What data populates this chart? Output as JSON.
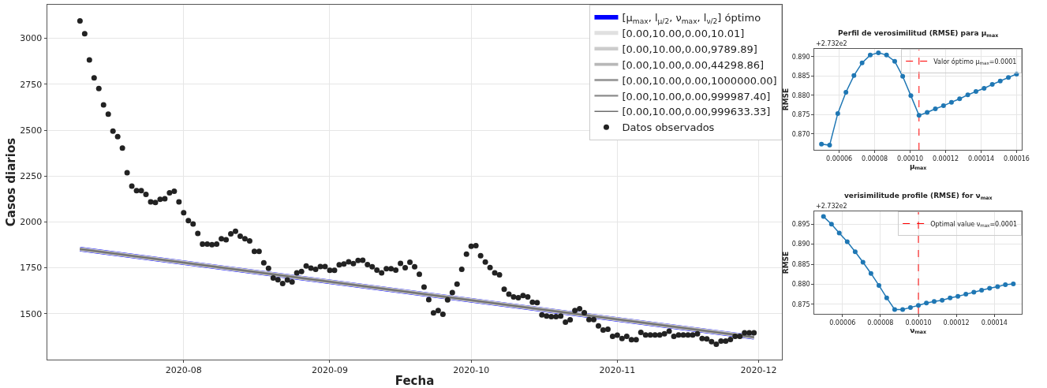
{
  "chart_data": [
    {
      "type": "line",
      "xlabel": "Fecha",
      "ylabel": "Casos diarios",
      "xlim": [
        "2020-07-03",
        "2020-12-06"
      ],
      "ylim": [
        1250,
        3183
      ],
      "xticks": [
        "2020-08",
        "2020-09",
        "2020-10",
        "2020-11",
        "2020-12"
      ],
      "yticks": [
        1500,
        1750,
        2000,
        2250,
        2500,
        2750,
        3000
      ],
      "grid": true,
      "legend": "top right",
      "series": [
        {
          "name": "[μ$_{max}$, l$_{μ/2}$, ν$_{max}$, l$_{ν/2}$] óptimo",
          "type": "line",
          "color": "#0000ff",
          "x": [
            "2020-07-10",
            "2020-11-30"
          ],
          "values": [
            1852,
            1372
          ]
        },
        {
          "name": "[0.00,10.00,0.00,10.01]",
          "type": "line",
          "color": "#e0e0e0",
          "x": [
            "2020-07-10",
            "2020-11-30"
          ],
          "values": [
            1852,
            1372
          ]
        },
        {
          "name": "[0.00,10.00,0.00,9789.89]",
          "type": "line",
          "color": "#cccccc",
          "x": [
            "2020-07-10",
            "2020-11-30"
          ],
          "values": [
            1852,
            1372
          ]
        },
        {
          "name": "[0.00,10.00,0.00,44298.86]",
          "type": "line",
          "color": "#b8b8b8",
          "x": [
            "2020-07-10",
            "2020-11-30"
          ],
          "values": [
            1852,
            1372
          ]
        },
        {
          "name": "[0.00,10.00,0.00,1000000.00]",
          "type": "line",
          "color": "#a0a0a0",
          "x": [
            "2020-07-10",
            "2020-11-30"
          ],
          "values": [
            1852,
            1372
          ]
        },
        {
          "name": "[0.00,10.00,0.00,999987.40]",
          "type": "line",
          "color": "#8c8c8c",
          "x": [
            "2020-07-10",
            "2020-11-30"
          ],
          "values": [
            1852,
            1372
          ]
        },
        {
          "name": "[0.00,10.00,0.00,999633.33]",
          "type": "line",
          "color": "#6e6e6e",
          "x": [
            "2020-07-10",
            "2020-11-30"
          ],
          "values": [
            1852,
            1372
          ]
        },
        {
          "name": "Datos observados",
          "type": "scatter",
          "color": "#222222",
          "x": [
            "2020-07-10",
            "2020-07-11",
            "2020-07-12",
            "2020-07-13",
            "2020-07-14",
            "2020-07-15",
            "2020-07-16",
            "2020-07-17",
            "2020-07-18",
            "2020-07-19",
            "2020-07-20",
            "2020-07-21",
            "2020-07-22",
            "2020-07-23",
            "2020-07-24",
            "2020-07-25",
            "2020-07-26",
            "2020-07-27",
            "2020-07-28",
            "2020-07-29",
            "2020-07-30",
            "2020-07-31",
            "2020-08-01",
            "2020-08-02",
            "2020-08-03",
            "2020-08-04",
            "2020-08-05",
            "2020-08-06",
            "2020-08-07",
            "2020-08-08",
            "2020-08-09",
            "2020-08-10",
            "2020-08-11",
            "2020-08-12",
            "2020-08-13",
            "2020-08-14",
            "2020-08-15",
            "2020-08-16",
            "2020-08-17",
            "2020-08-18",
            "2020-08-19",
            "2020-08-20",
            "2020-08-21",
            "2020-08-22",
            "2020-08-23",
            "2020-08-24",
            "2020-08-25",
            "2020-08-26",
            "2020-08-27",
            "2020-08-28",
            "2020-08-29",
            "2020-08-30",
            "2020-08-31",
            "2020-09-01",
            "2020-09-02",
            "2020-09-03",
            "2020-09-04",
            "2020-09-05",
            "2020-09-06",
            "2020-09-07",
            "2020-09-08",
            "2020-09-09",
            "2020-09-10",
            "2020-09-11",
            "2020-09-12",
            "2020-09-13",
            "2020-09-14",
            "2020-09-15",
            "2020-09-16",
            "2020-09-17",
            "2020-09-18",
            "2020-09-19",
            "2020-09-20",
            "2020-09-21",
            "2020-09-22",
            "2020-09-23",
            "2020-09-24",
            "2020-09-25",
            "2020-09-26",
            "2020-09-27",
            "2020-09-28",
            "2020-09-29",
            "2020-09-30",
            "2020-10-01",
            "2020-10-02",
            "2020-10-03",
            "2020-10-04",
            "2020-10-05",
            "2020-10-06",
            "2020-10-07",
            "2020-10-08",
            "2020-10-09",
            "2020-10-10",
            "2020-10-11",
            "2020-10-12",
            "2020-10-13",
            "2020-10-14",
            "2020-10-15",
            "2020-10-16",
            "2020-10-17",
            "2020-10-18",
            "2020-10-19",
            "2020-10-20",
            "2020-10-21",
            "2020-10-22",
            "2020-10-23",
            "2020-10-24",
            "2020-10-25",
            "2020-10-26",
            "2020-10-27",
            "2020-10-28",
            "2020-10-29",
            "2020-10-30",
            "2020-10-31",
            "2020-11-01",
            "2020-11-02",
            "2020-11-03",
            "2020-11-04",
            "2020-11-05",
            "2020-11-06",
            "2020-11-07",
            "2020-11-08",
            "2020-11-09",
            "2020-11-10",
            "2020-11-11",
            "2020-11-12",
            "2020-11-13",
            "2020-11-14",
            "2020-11-15",
            "2020-11-16",
            "2020-11-17",
            "2020-11-18",
            "2020-11-19",
            "2020-11-20",
            "2020-11-21",
            "2020-11-22",
            "2020-11-23",
            "2020-11-24",
            "2020-11-25",
            "2020-11-26",
            "2020-11-27",
            "2020-11-28",
            "2020-11-29",
            "2020-11-30"
          ],
          "values": [
            3095,
            3025,
            2882,
            2785,
            2727,
            2638,
            2587,
            2495,
            2465,
            2402,
            2268,
            2195,
            2170,
            2170,
            2150,
            2109,
            2106,
            2123,
            2126,
            2159,
            2167,
            2109,
            2050,
            2007,
            1989,
            1937,
            1879,
            1879,
            1876,
            1879,
            1908,
            1903,
            1935,
            1949,
            1922,
            1908,
            1897,
            1840,
            1840,
            1777,
            1747,
            1695,
            1685,
            1664,
            1684,
            1673,
            1722,
            1730,
            1760,
            1748,
            1742,
            1757,
            1757,
            1736,
            1736,
            1767,
            1771,
            1783,
            1773,
            1790,
            1791,
            1768,
            1756,
            1738,
            1722,
            1745,
            1745,
            1738,
            1774,
            1750,
            1780,
            1756,
            1715,
            1645,
            1576,
            1504,
            1517,
            1497,
            1575,
            1615,
            1661,
            1742,
            1825,
            1868,
            1871,
            1816,
            1782,
            1751,
            1723,
            1712,
            1633,
            1607,
            1592,
            1587,
            1599,
            1592,
            1563,
            1560,
            1494,
            1487,
            1484,
            1484,
            1487,
            1454,
            1467,
            1517,
            1527,
            1506,
            1468,
            1468,
            1434,
            1411,
            1415,
            1377,
            1383,
            1365,
            1377,
            1358,
            1358,
            1398,
            1384,
            1384,
            1384,
            1384,
            1391,
            1405,
            1377,
            1384,
            1384,
            1384,
            1384,
            1391,
            1365,
            1363,
            1348,
            1334,
            1351,
            1351,
            1360,
            1377,
            1377,
            1396,
            1396,
            1396
          ]
        }
      ]
    },
    {
      "type": "line",
      "title": "Perfil de verosimilitud (RMSE) para μ$_{max}$",
      "xlabel": "μ$_{max}$",
      "ylabel": "RMSE",
      "annotations": [
        "+2.732e2"
      ],
      "marker": "circle",
      "grid": true,
      "legend": "top right",
      "xlim": [
        4.6e-05,
        0.000163
      ],
      "ylim": [
        0.8659,
        0.892
      ],
      "xticks": [
        {
          "value": 6e-05,
          "label": "0.00006"
        },
        {
          "value": 8e-05,
          "label": "0.00008"
        },
        {
          "value": 0.0001,
          "label": "0.00010"
        },
        {
          "value": 0.00012,
          "label": "0.00012"
        },
        {
          "value": 0.00014,
          "label": "0.00014"
        },
        {
          "value": 0.00016,
          "label": "0.00016"
        }
      ],
      "yticks": [
        {
          "value": 0.87,
          "label": "0.870"
        },
        {
          "value": 0.875,
          "label": "0.875"
        },
        {
          "value": 0.88,
          "label": "0.880"
        },
        {
          "value": 0.885,
          "label": "0.885"
        },
        {
          "value": 0.89,
          "label": "0.890"
        }
      ],
      "ref_lines": [
        {
          "axis": "x",
          "value": 0.000105,
          "label": "Valor óptimo μ$_{max}$=0.0001",
          "color": "#ff0000",
          "line_style": "dashed"
        }
      ],
      "series": [
        {
          "color": "#1f77b4",
          "x": [
            5e-05,
            5.46e-05,
            5.92e-05,
            6.38e-05,
            6.83e-05,
            7.29e-05,
            7.75e-05,
            8.21e-05,
            8.67e-05,
            9.13e-05,
            9.58e-05,
            0.0001004,
            0.000105,
            0.0001096,
            0.0001142,
            0.0001188,
            0.0001233,
            0.0001279,
            0.0001325,
            0.0001371,
            0.0001417,
            0.0001463,
            0.0001508,
            0.0001554,
            0.00016
          ],
          "values": [
            0.8674,
            0.8671,
            0.8753,
            0.8808,
            0.8851,
            0.8884,
            0.8904,
            0.891,
            0.8904,
            0.8888,
            0.8849,
            0.8799,
            0.8748,
            0.8756,
            0.8765,
            0.8773,
            0.8782,
            0.8791,
            0.8801,
            0.881,
            0.8818,
            0.8828,
            0.8837,
            0.8846,
            0.8855
          ]
        }
      ]
    },
    {
      "type": "line",
      "title": "verisimilitude profile (RMSE) for ν$_{max}$",
      "xlabel": "ν$_{max}$",
      "ylabel": "RMSE",
      "annotations": [
        "+2.732e2"
      ],
      "marker": "circle",
      "grid": true,
      "legend": "top right",
      "xlim": [
        4.52e-05,
        0.0001545
      ],
      "ylim": [
        0.8726,
        0.8982
      ],
      "xticks": [
        {
          "value": 6e-05,
          "label": "0.00006"
        },
        {
          "value": 8e-05,
          "label": "0.00008"
        },
        {
          "value": 0.0001,
          "label": "0.00010"
        },
        {
          "value": 0.00012,
          "label": "0.00012"
        },
        {
          "value": 0.00014,
          "label": "0.00014"
        }
      ],
      "yticks": [
        {
          "value": 0.875,
          "label": "0.875"
        },
        {
          "value": 0.88,
          "label": "0.880"
        },
        {
          "value": 0.885,
          "label": "0.885"
        },
        {
          "value": 0.89,
          "label": "0.890"
        },
        {
          "value": 0.895,
          "label": "0.895"
        }
      ],
      "ref_lines": [
        {
          "axis": "x",
          "value": 0.0001,
          "label": "Optimal value ν$_{max}$=0.0001",
          "color": "#ff0000",
          "line_style": "dashed"
        }
      ],
      "series": [
        {
          "color": "#1f77b4",
          "x": [
            5e-05,
            5.42e-05,
            5.83e-05,
            6.25e-05,
            6.67e-05,
            7.08e-05,
            7.5e-05,
            7.92e-05,
            8.33e-05,
            8.75e-05,
            9.17e-05,
            9.58e-05,
            0.0001,
            0.0001042,
            0.0001083,
            0.0001125,
            0.0001167,
            0.0001208,
            0.000125,
            0.0001292,
            0.0001333,
            0.0001375,
            0.0001417,
            0.0001458,
            0.00015
          ],
          "values": [
            0.8969,
            0.895,
            0.8928,
            0.8906,
            0.8881,
            0.8855,
            0.8827,
            0.8797,
            0.8766,
            0.8737,
            0.8737,
            0.8742,
            0.8747,
            0.8753,
            0.8757,
            0.876,
            0.8766,
            0.877,
            0.8775,
            0.878,
            0.8785,
            0.879,
            0.8794,
            0.8799,
            0.8801
          ]
        }
      ]
    }
  ]
}
